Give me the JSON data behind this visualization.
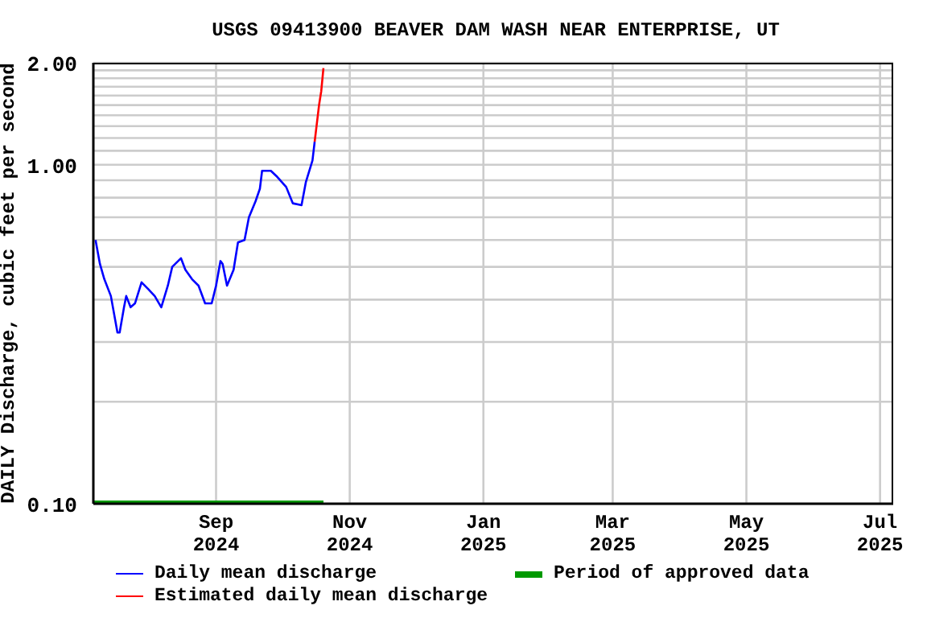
{
  "chart_data": {
    "type": "line",
    "title": "USGS 09413900 BEAVER DAM WASH NEAR ENTERPRISE, UT",
    "ylabel": "DAILY Discharge, cubic feet per second",
    "series": [
      {
        "name": "Daily mean discharge",
        "color": "#0000ff",
        "x": [
          "2024-07-08",
          "2024-07-10",
          "2024-07-12",
          "2024-07-15",
          "2024-07-18",
          "2024-07-19",
          "2024-07-21",
          "2024-07-22",
          "2024-07-24",
          "2024-07-26",
          "2024-07-29",
          "2024-08-01",
          "2024-08-04",
          "2024-08-07",
          "2024-08-10",
          "2024-08-12",
          "2024-08-16",
          "2024-08-18",
          "2024-08-21",
          "2024-08-24",
          "2024-08-27",
          "2024-08-30",
          "2024-09-01",
          "2024-09-03",
          "2024-09-04",
          "2024-09-06",
          "2024-09-09",
          "2024-09-11",
          "2024-09-14",
          "2024-09-16",
          "2024-09-19",
          "2024-09-21",
          "2024-09-22",
          "2024-09-26",
          "2024-09-29",
          "2024-10-03",
          "2024-10-06",
          "2024-10-10",
          "2024-10-12",
          "2024-10-15",
          "2024-10-16"
        ],
        "values": [
          0.6,
          0.51,
          0.46,
          0.41,
          0.32,
          0.32,
          0.38,
          0.41,
          0.38,
          0.39,
          0.45,
          0.43,
          0.41,
          0.38,
          0.44,
          0.5,
          0.53,
          0.49,
          0.46,
          0.44,
          0.39,
          0.39,
          0.44,
          0.52,
          0.51,
          0.44,
          0.49,
          0.59,
          0.6,
          0.7,
          0.78,
          0.85,
          0.96,
          0.96,
          0.92,
          0.86,
          0.77,
          0.76,
          0.89,
          1.03,
          1.17
        ]
      },
      {
        "name": "Estimated daily mean discharge",
        "color": "#ff0000",
        "x": [
          "2024-10-16",
          "2024-10-18",
          "2024-10-19",
          "2024-10-20"
        ],
        "values": [
          1.17,
          1.5,
          1.65,
          1.93
        ]
      },
      {
        "name": "Period of approved data",
        "color": "#009900",
        "x": [
          "2024-07-07",
          "2024-10-20"
        ],
        "values": [
          0.1,
          0.1
        ]
      }
    ],
    "xlim": [
      "2024-07-07",
      "2025-07-07"
    ],
    "xticks": [
      {
        "value": "2024-09-01",
        "label": "Sep 2024"
      },
      {
        "value": "2024-11-01",
        "label": "Nov 2024"
      },
      {
        "value": "2025-01-01",
        "label": "Jan 2025"
      },
      {
        "value": "2025-03-01",
        "label": "Mar 2025"
      },
      {
        "value": "2025-05-01",
        "label": "May 2025"
      },
      {
        "value": "2025-07-01",
        "label": "Jul 2025"
      }
    ],
    "ylim": [
      0.1,
      2
    ],
    "yticks": [
      {
        "value": 0.1,
        "label": "0.10"
      },
      {
        "value": 0.2,
        "label": null
      },
      {
        "value": 0.3,
        "label": null
      },
      {
        "value": 0.4,
        "label": null
      },
      {
        "value": 0.5,
        "label": null
      },
      {
        "value": 0.6,
        "label": null
      },
      {
        "value": 0.7,
        "label": null
      },
      {
        "value": 0.8,
        "label": null
      },
      {
        "value": 0.9,
        "label": null
      },
      {
        "value": 1,
        "label": "1.00"
      },
      {
        "value": 1.1,
        "label": null
      },
      {
        "value": 1.2,
        "label": null
      },
      {
        "value": 1.3,
        "label": null
      },
      {
        "value": 1.4,
        "label": null
      },
      {
        "value": 1.5,
        "label": null
      },
      {
        "value": 1.6,
        "label": null
      },
      {
        "value": 1.7,
        "label": null
      },
      {
        "value": 1.8,
        "label": null
      },
      {
        "value": 1.9,
        "label": null
      },
      {
        "value": 2,
        "label": "2.00"
      }
    ],
    "log": "y",
    "grid": true,
    "legend": "bottom",
    "marker": "none",
    "line_style": "solid"
  }
}
